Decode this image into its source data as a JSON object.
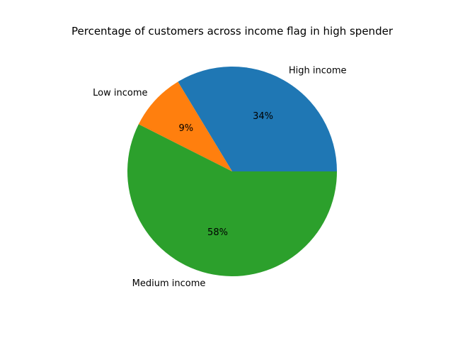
{
  "chart_data": {
    "type": "pie",
    "title": "Percentage of customers across income flag in high spender",
    "categories": [
      "High income",
      "Low income",
      "Medium income"
    ],
    "values": [
      34,
      9,
      58
    ],
    "value_labels": [
      "34%",
      "9%",
      "58%"
    ],
    "colors": [
      "#1f77b4",
      "#ff7f0e",
      "#2ca02c"
    ],
    "start_angle_deg": 0,
    "direction": "counterclockwise",
    "legend": "none"
  }
}
